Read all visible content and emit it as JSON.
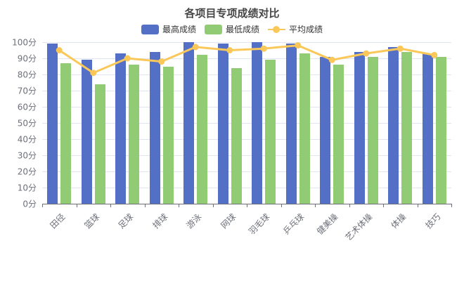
{
  "chart_data": {
    "type": "bar",
    "title": "各项目专项成绩对比",
    "categories": [
      "田径",
      "篮球",
      "足球",
      "排球",
      "游泳",
      "网球",
      "羽毛球",
      "乒乓球",
      "健美操",
      "艺术体操",
      "体操",
      "技巧"
    ],
    "series": [
      {
        "name": "最高成绩",
        "type": "bar",
        "color": "#5470C6",
        "values": [
          99,
          89,
          93,
          94,
          100,
          99,
          100,
          99,
          91,
          94,
          97,
          93
        ]
      },
      {
        "name": "最低成绩",
        "type": "bar",
        "color": "#91CC75",
        "values": [
          87,
          74,
          86,
          85,
          92,
          84,
          89,
          93,
          86,
          91,
          94,
          91
        ]
      },
      {
        "name": "平均成绩",
        "type": "line",
        "color": "#FAC858",
        "values": [
          95,
          81,
          90,
          88,
          97,
          95,
          96,
          98,
          89,
          93,
          96,
          92
        ]
      }
    ],
    "ylim": [
      0,
      100
    ],
    "ytick_step": 10,
    "ytick_suffix": "分",
    "grid": true,
    "legend_position": "top",
    "xlabel": "",
    "ylabel": ""
  },
  "colors": {
    "background": "#FFFFFF",
    "title": "#464646",
    "legend_text": "#333333",
    "axis_label": "#6E7079",
    "axis_line": "#6E7079",
    "grid_line": "#E0E6F1"
  }
}
